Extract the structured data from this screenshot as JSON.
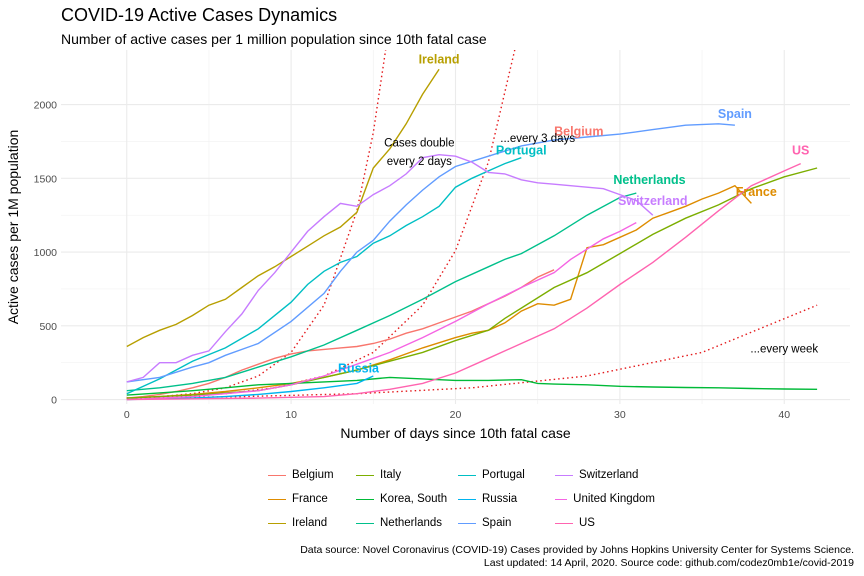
{
  "chart_data": {
    "type": "line",
    "title": "COVID-19 Active Cases Dynamics",
    "subtitle": "Number of active cases per 1 million population since 10th fatal case",
    "xlabel": "Number of days since 10th fatal case",
    "ylabel": "Active cases per 1M population",
    "xlim": [
      -4,
      44
    ],
    "ylim": [
      -30,
      2370
    ],
    "xticks": [
      0,
      10,
      20,
      30,
      40
    ],
    "yticks": [
      0,
      500,
      1000,
      1500,
      2000
    ],
    "grid": true,
    "legend_position": "bottom",
    "series": [
      {
        "name": "Belgium",
        "color": "#F8766D",
        "label_x": 27.5,
        "label_y": 1790,
        "x": [
          0,
          1,
          2,
          3,
          4,
          5,
          6,
          7,
          8,
          9,
          10,
          11,
          12,
          13,
          14,
          15,
          16,
          17,
          18,
          19,
          20,
          21,
          22,
          23,
          24,
          25,
          26
        ],
        "y": [
          10,
          20,
          35,
          55,
          80,
          110,
          150,
          200,
          240,
          280,
          310,
          330,
          340,
          350,
          360,
          380,
          410,
          450,
          480,
          520,
          560,
          600,
          650,
          700,
          760,
          830,
          880
        ]
      },
      {
        "name": "France",
        "color": "#DE8C00",
        "label_x": 38.3,
        "label_y": 1380,
        "x": [
          0,
          2,
          4,
          6,
          8,
          10,
          12,
          14,
          16,
          18,
          20,
          21,
          22,
          23,
          24,
          25,
          26,
          27,
          28,
          29,
          30,
          31,
          32,
          33,
          34,
          35,
          36,
          37,
          38
        ],
        "y": [
          10,
          20,
          35,
          55,
          80,
          110,
          150,
          200,
          270,
          350,
          420,
          450,
          470,
          520,
          600,
          650,
          640,
          680,
          1030,
          1050,
          1100,
          1150,
          1230,
          1270,
          1310,
          1360,
          1400,
          1450,
          1330
        ]
      },
      {
        "name": "Ireland",
        "color": "#B79F00",
        "label_x": 19.0,
        "label_y": 2280,
        "x": [
          0,
          1,
          2,
          3,
          4,
          5,
          6,
          7,
          8,
          9,
          10,
          11,
          12,
          13,
          14,
          15,
          16,
          17,
          18,
          19
        ],
        "y": [
          360,
          420,
          470,
          510,
          570,
          640,
          680,
          760,
          840,
          900,
          970,
          1040,
          1110,
          1170,
          1270,
          1570,
          1700,
          1870,
          2070,
          2240
        ]
      },
      {
        "name": "Italy",
        "color": "#7CAE00",
        "label_x": null,
        "label_y": null,
        "x": [
          0,
          4,
          8,
          10,
          12,
          14,
          16,
          18,
          20,
          22,
          23,
          24,
          26,
          28,
          30,
          32,
          34,
          36,
          38,
          40,
          42
        ],
        "y": [
          10,
          30,
          60,
          100,
          150,
          200,
          260,
          320,
          400,
          470,
          550,
          620,
          760,
          860,
          990,
          1120,
          1230,
          1320,
          1430,
          1510,
          1570
        ]
      },
      {
        "name": "Korea, South",
        "color": "#00BA38",
        "label_x": null,
        "label_y": null,
        "x": [
          0,
          2,
          4,
          6,
          8,
          10,
          12,
          14,
          16,
          18,
          20,
          22,
          24,
          25,
          26,
          28,
          30,
          32,
          34,
          36,
          38,
          40,
          42
        ],
        "y": [
          30,
          45,
          60,
          80,
          100,
          110,
          120,
          130,
          150,
          140,
          130,
          130,
          135,
          110,
          105,
          100,
          90,
          85,
          82,
          80,
          75,
          72,
          70
        ]
      },
      {
        "name": "Netherlands",
        "color": "#00C08B",
        "label_x": 31.8,
        "label_y": 1460,
        "x": [
          0,
          2,
          4,
          6,
          8,
          10,
          12,
          14,
          16,
          18,
          20,
          22,
          23,
          24,
          26,
          28,
          30,
          31
        ],
        "y": [
          60,
          80,
          110,
          150,
          220,
          290,
          370,
          470,
          570,
          680,
          800,
          900,
          950,
          990,
          1110,
          1250,
          1370,
          1400
        ]
      },
      {
        "name": "Portugal",
        "color": "#00BFC4",
        "label_x": 24.0,
        "label_y": 1660,
        "x": [
          0,
          2,
          4,
          6,
          8,
          10,
          11,
          12,
          13,
          14,
          15,
          16,
          17,
          18,
          19,
          20,
          21,
          22,
          23,
          24
        ],
        "y": [
          40,
          140,
          260,
          350,
          480,
          660,
          780,
          870,
          930,
          970,
          1060,
          1110,
          1180,
          1240,
          1310,
          1440,
          1500,
          1550,
          1600,
          1640
        ]
      },
      {
        "name": "Russia",
        "color": "#00B4EF",
        "label_x": 14.1,
        "label_y": 185,
        "x": [
          0,
          2,
          4,
          6,
          8,
          10,
          12,
          14,
          15
        ],
        "y": [
          0,
          5,
          10,
          20,
          35,
          55,
          80,
          110,
          160
        ]
      },
      {
        "name": "Spain",
        "color": "#619CFF",
        "label_x": 37.0,
        "label_y": 1910,
        "x": [
          0,
          2,
          4,
          5,
          6,
          8,
          10,
          12,
          13,
          14,
          15,
          16,
          17,
          18,
          19,
          20,
          22,
          24,
          26,
          28,
          30,
          32,
          34,
          36,
          37
        ],
        "y": [
          120,
          150,
          220,
          250,
          300,
          380,
          530,
          720,
          870,
          1000,
          1080,
          1210,
          1320,
          1420,
          1510,
          1580,
          1650,
          1720,
          1760,
          1780,
          1800,
          1830,
          1860,
          1870,
          1860
        ]
      },
      {
        "name": "Switzerland",
        "color": "#C77CFF",
        "label_x": 32.0,
        "label_y": 1320,
        "x": [
          0,
          1,
          2,
          3,
          4,
          5,
          6,
          7,
          8,
          9,
          10,
          11,
          12,
          13,
          14,
          15,
          16,
          17,
          18,
          19,
          20,
          21,
          22,
          23,
          24,
          25,
          26,
          27,
          28,
          29,
          30,
          31,
          32
        ],
        "y": [
          120,
          150,
          250,
          250,
          300,
          330,
          460,
          580,
          740,
          860,
          1000,
          1140,
          1240,
          1330,
          1310,
          1390,
          1450,
          1530,
          1640,
          1660,
          1650,
          1610,
          1540,
          1530,
          1490,
          1470,
          1460,
          1450,
          1440,
          1430,
          1390,
          1350,
          1250
        ]
      },
      {
        "name": "United Kingdom",
        "color": "#F564E3",
        "label_x": null,
        "label_y": null,
        "x": [
          0,
          4,
          8,
          10,
          12,
          14,
          16,
          18,
          20,
          22,
          24,
          26,
          27,
          28,
          29,
          30,
          31
        ],
        "y": [
          0,
          20,
          60,
          100,
          160,
          240,
          320,
          420,
          530,
          650,
          760,
          860,
          950,
          1020,
          1090,
          1140,
          1200
        ]
      },
      {
        "name": "US",
        "color": "#FF64B0",
        "label_x": 41.0,
        "label_y": 1660,
        "x": [
          0,
          4,
          8,
          12,
          14,
          16,
          18,
          20,
          22,
          24,
          26,
          28,
          30,
          32,
          34,
          36,
          38,
          40,
          41
        ],
        "y": [
          0,
          5,
          10,
          20,
          40,
          70,
          110,
          180,
          280,
          380,
          480,
          620,
          780,
          930,
          1100,
          1280,
          1450,
          1550,
          1600
        ]
      }
    ],
    "annotations": [
      {
        "text": "Cases double",
        "x": 17.8,
        "y": 1715
      },
      {
        "text": "every 2 days",
        "x": 17.8,
        "y": 1590
      },
      {
        "text": "...every 3 days",
        "x": 25.0,
        "y": 1745
      },
      {
        "text": "...every week",
        "x": 40.0,
        "y": 320
      }
    ],
    "reference_lines": [
      {
        "name": "every 2 days",
        "color": "#E41A1C",
        "x": [
          0,
          2,
          4,
          6,
          8,
          10,
          12,
          14,
          15,
          16,
          17,
          18,
          19
        ],
        "y": [
          10,
          20,
          40,
          80,
          160,
          320,
          640,
          1280,
          1810,
          2560,
          3620,
          5120,
          7240
        ]
      },
      {
        "name": "every 3 days",
        "color": "#E41A1C",
        "x": [
          0,
          3,
          6,
          9,
          12,
          15,
          18,
          20,
          22,
          24,
          25,
          26,
          27
        ],
        "y": [
          10,
          20,
          40,
          80,
          160,
          320,
          640,
          1010,
          1610,
          2560,
          3220,
          4060,
          5120
        ]
      },
      {
        "name": "every week",
        "color": "#E41A1C",
        "x": [
          0,
          7,
          14,
          21,
          28,
          35,
          42
        ],
        "y": [
          10,
          20,
          40,
          80,
          160,
          320,
          640
        ]
      }
    ]
  },
  "caption": {
    "line1": "Data source: Novel Coronavirus (COVID-19) Cases provided by Johns Hopkins University Center for Systems Science.",
    "line2": "Last updated: 14 April, 2020. Source code: github.com/codez0mb1e/covid-2019"
  }
}
